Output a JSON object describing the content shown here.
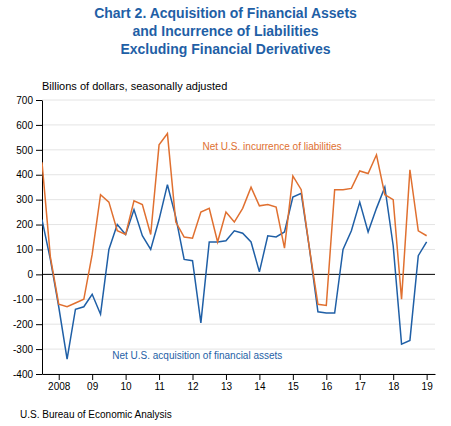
{
  "chart_data": {
    "type": "line",
    "title": "Chart 2. Acquisition of Financial Assets\nand Incurrence of Liabilities\nExcluding Financial Derivatives",
    "title_color": "#1f5fa6",
    "subtitle": "Billions of dollars, seasonally adjusted",
    "footer": "U.S. Bureau of Economic Analysis",
    "x": [
      2007.5,
      2007.75,
      2008.0,
      2008.25,
      2008.5,
      2008.75,
      2009.0,
      2009.25,
      2009.5,
      2009.75,
      2010.0,
      2010.25,
      2010.5,
      2010.75,
      2011.0,
      2011.25,
      2011.5,
      2011.75,
      2012.0,
      2012.25,
      2012.5,
      2012.75,
      2013.0,
      2013.25,
      2013.5,
      2013.75,
      2014.0,
      2014.25,
      2014.5,
      2014.75,
      2015.0,
      2015.25,
      2015.5,
      2015.75,
      2016.0,
      2016.25,
      2016.5,
      2016.75,
      2017.0,
      2017.25,
      2017.5,
      2017.75,
      2018.0,
      2018.25,
      2018.5,
      2018.75,
      2019.0
    ],
    "series": [
      {
        "name": "Net U.S. acquisition of financial assets",
        "color": "#1f5fa6",
        "values": [
          220,
          60,
          -130,
          -340,
          -140,
          -130,
          -80,
          -160,
          100,
          200,
          160,
          260,
          155,
          100,
          220,
          360,
          230,
          60,
          55,
          -195,
          130,
          130,
          135,
          175,
          165,
          130,
          10,
          155,
          150,
          170,
          310,
          325,
          100,
          -150,
          -155,
          -155,
          100,
          175,
          290,
          170,
          265,
          350,
          115,
          -280,
          -265,
          75,
          130
        ]
      },
      {
        "name": "Net U.S. incurrence of liabilities",
        "color": "#e07030",
        "values": [
          450,
          70,
          -120,
          -130,
          -115,
          -100,
          80,
          320,
          290,
          175,
          160,
          295,
          280,
          160,
          520,
          565,
          210,
          150,
          145,
          250,
          265,
          130,
          250,
          210,
          265,
          350,
          275,
          280,
          270,
          105,
          395,
          340,
          100,
          -120,
          -125,
          340,
          340,
          345,
          415,
          405,
          480,
          320,
          300,
          -100,
          420,
          175,
          155
        ]
      }
    ],
    "annotations": [
      {
        "text": "Net U.S. incurrence of liabilities",
        "x": 2012.3,
        "y": 510,
        "color": "#e07030"
      },
      {
        "text": "Net U.S. acquisition of financial assets",
        "x": 2009.6,
        "y": -330,
        "color": "#1f5fa6"
      }
    ],
    "xlim": [
      2007.5,
      2019.25
    ],
    "xticks": [
      2008,
      {
        "value": 2009,
        "label": "09"
      },
      {
        "value": 2010,
        "label": "10"
      },
      {
        "value": 2011,
        "label": "11"
      },
      {
        "value": 2012,
        "label": "12"
      },
      {
        "value": 2013,
        "label": "13"
      },
      {
        "value": 2014,
        "label": "14"
      },
      {
        "value": 2015,
        "label": "15"
      },
      {
        "value": 2016,
        "label": "16"
      },
      {
        "value": 2017,
        "label": "17"
      },
      {
        "value": 2018,
        "label": "18"
      },
      {
        "value": 2019,
        "label": "19"
      }
    ],
    "ylim": [
      -400,
      700
    ],
    "yticks": [
      -400,
      -300,
      -200,
      -100,
      0,
      100,
      200,
      300,
      400,
      500,
      600,
      700
    ],
    "grid": true
  }
}
